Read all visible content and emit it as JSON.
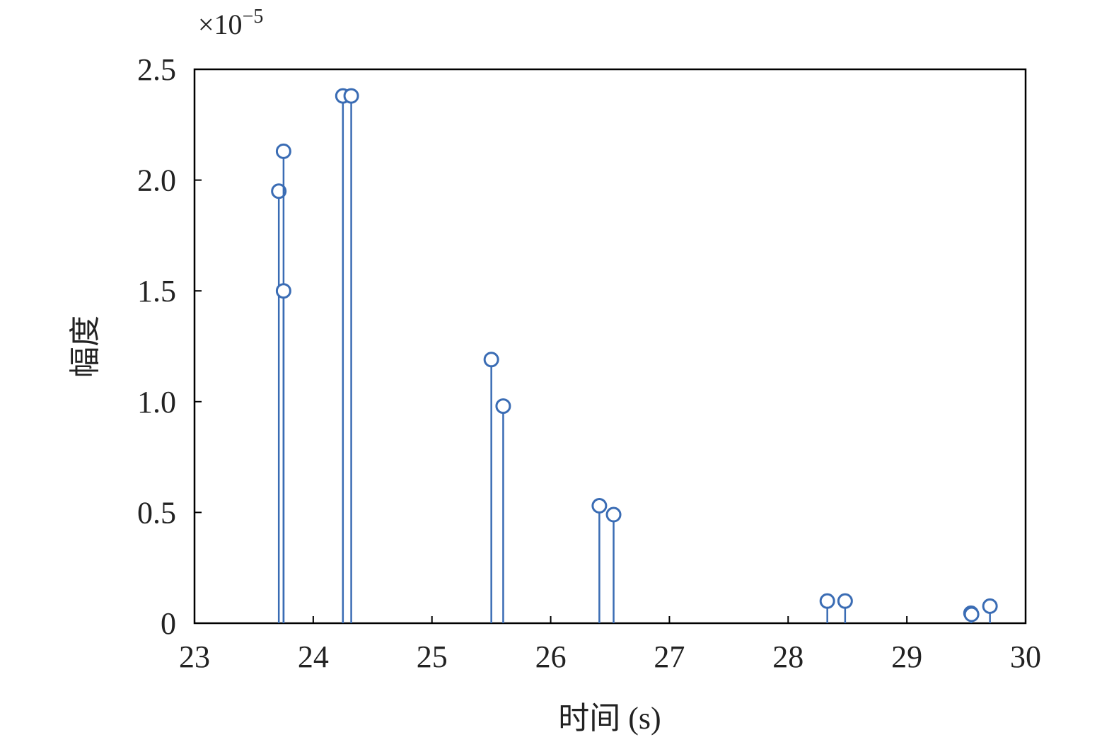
{
  "chart_data": {
    "type": "stem",
    "x_label": "时间 (s)",
    "y_label": "幅度",
    "y_scale_label": "×10",
    "y_scale_exponent": "−5",
    "xlim": [
      23,
      30
    ],
    "xticks": [
      23,
      24,
      25,
      26,
      27,
      28,
      29,
      30
    ],
    "ylim": [
      0,
      2.5
    ],
    "yticks": [
      0,
      0.5,
      {
        "value": 1,
        "label": "1.0"
      },
      1.5,
      {
        "value": 2,
        "label": "2.0"
      },
      2.5
    ],
    "color": "#3a6cb4",
    "x": [
      23.71,
      23.75,
      23.75,
      24.25,
      24.32,
      25.5,
      25.6,
      26.41,
      26.53,
      28.33,
      28.48,
      29.54,
      29.545,
      29.7
    ],
    "values": [
      1.95,
      2.13,
      1.5,
      2.38,
      2.38,
      1.19,
      0.98,
      0.53,
      0.49,
      0.1,
      0.1,
      0.045,
      0.04,
      0.077
    ]
  }
}
